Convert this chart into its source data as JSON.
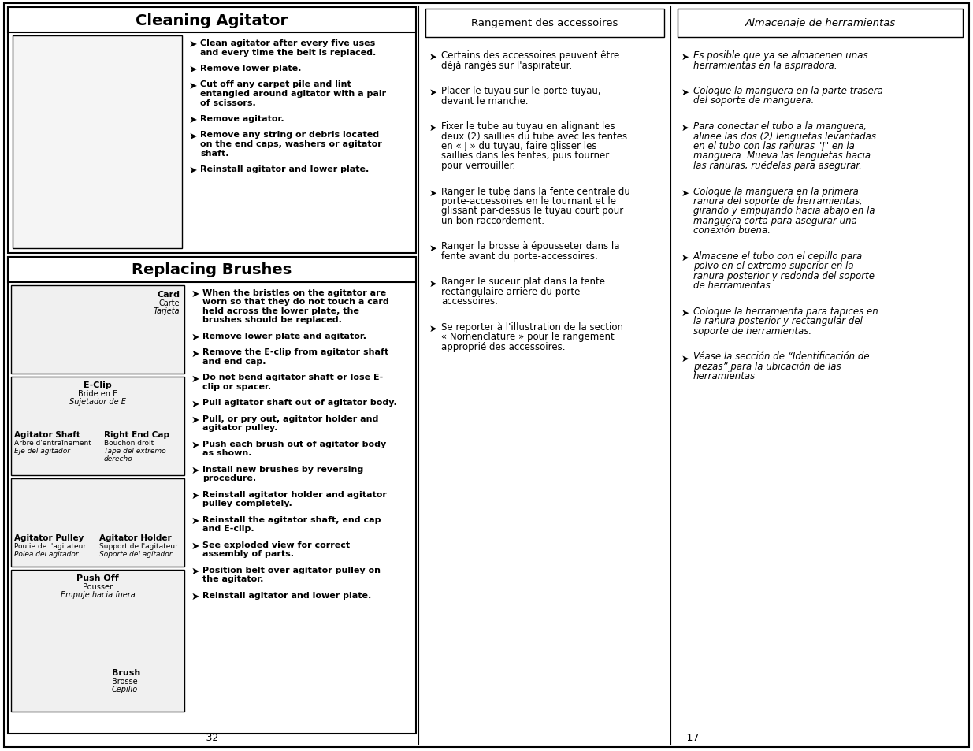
{
  "bg_color": "#ffffff",
  "cleaning_title": "Cleaning Agitator",
  "cleaning_instructions": [
    "Clean agitator after every five uses\nand every time the belt is replaced.",
    "Remove lower plate.",
    "Cut off any carpet pile and lint\nentangled around agitator with a pair\nof scissors.",
    "Remove agitator.",
    "Remove any string or debris located\non the end caps, washers or agitator\nshaft.",
    "Reinstall agitator and lower plate."
  ],
  "replacing_title": "Replacing Brushes",
  "replacing_instructions": [
    "When the bristles on the agitator are\nworn so that they do not touch a card\nheld across the lower plate, the\nbrushes should be replaced.",
    "Remove lower plate and agitator.",
    "Remove the E-clip from agitator shaft\nand end cap.",
    "Do not bend agitator shaft or lose E-\nclip or spacer.",
    "Pull agitator shaft out of agitator body.",
    "Pull, or pry out, agitator holder and\nagitator pulley.",
    "Push each brush out of agitator body\nas shown.",
    "Install new brushes by reversing\nprocedure.",
    "Reinstall agitator holder and agitator\npulley completely.",
    "Reinstall the agitator shaft, end cap\nand E-clip.",
    "See exploded view for correct\nassembly of parts.",
    "Position belt over agitator pulley on\nthe agitator.",
    "Reinstall agitator and lower plate."
  ],
  "mid_title": "Rangement des accessoires",
  "mid_items": [
    "Certains des accessoires peuvent être\ndéjà rangés sur l'aspirateur.",
    "Placer le tuyau sur le porte-tuyau,\ndevant le manche.",
    "Fixer le tube au tuyau en alignant les\ndeux (2) saillies du tube avec les fentes\nen « J » du tuyau, faire glisser les\nsaillies dans les fentes, puis tourner\npour verrouiller.",
    "Ranger le tube dans la fente centrale du\nporte-accessoires en le tournant et le\nglissant par-dessus le tuyau court pour\nun bon raccordement.",
    "Ranger la brosse à épousseter dans la\nfente avant du porte-accessoires.",
    "Ranger le suceur plat dans la fente\nrectangulaire arrière du porte-\naccessoires.",
    "Se reporter à l'illustration de la section\n« Nomenclature » pour le rangement\napproprié des accessoires."
  ],
  "right_title": "Almacenaje de herramientas",
  "right_items": [
    "Es posible que ya se almacenen unas\nherramientas en la aspiradora.",
    "Coloque la manguera en la parte trasera\ndel soporte de manguera.",
    "Para conectar el tubo a la manguera,\nalinee las dos (2) lengüetas levantadas\nen el tubo con las ranuras \"J\" en la\nmanguera. Mueva las lengüetas hacia\nlas ranuras, ruédelas para asegurar.",
    "Coloque la manguera en la primera\nranura del soporte de herramientas,\ngirando y empujando hacia abajo en la\nmanguera corta para asegurar una\nconexión buena.",
    "Almacene el tubo con el cepillo para\npolvo en el extremo superior en la\nranura posterior y redonda del soporte\nde herramientas.",
    "Coloque la herramienta para tapices en\nla ranura posterior y rectangular del\nsoporte de herramientas.",
    "Véase la sección de “Identificación de\npiezas” para la ubicación de las\nherramientas"
  ],
  "page_left": "- 32 -",
  "page_right": "- 17 -",
  "arrow": "➤"
}
